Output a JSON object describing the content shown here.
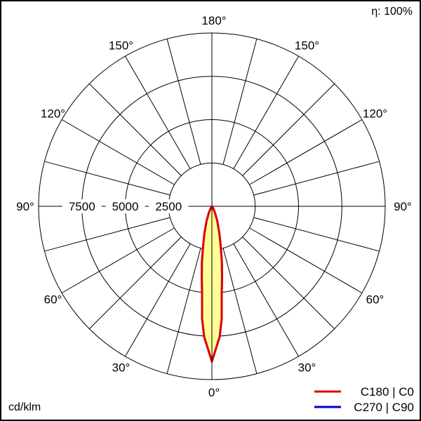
{
  "chart_data": {
    "type": "polar",
    "efficiency_label": "η: 100%",
    "unit_label": "cd/klm",
    "radial_ticks": [
      2500,
      5000,
      7500,
      10000
    ],
    "radial_tick_labels": [
      "2500",
      "5000",
      "7500"
    ],
    "rlim": [
      0,
      10000
    ],
    "angle_step_deg": 15,
    "angle_labels": [
      "0°",
      "30°",
      "60°",
      "90°",
      "120°",
      "150°",
      "180°"
    ],
    "grid": true,
    "legend_placement": "bottom-right",
    "series": [
      {
        "name": "C180 | C0",
        "color": "#e00000",
        "fill": "#ffff99",
        "gamma_deg": [
          0,
          3.4,
          5,
          6.5,
          8,
          10,
          12,
          15,
          20,
          25,
          30,
          40,
          90
        ],
        "intensity": [
          8950,
          7540,
          6500,
          5010,
          4200,
          3300,
          2500,
          1700,
          900,
          400,
          150,
          30,
          0
        ]
      },
      {
        "name": "C270 | C90",
        "color": "#0000cc",
        "gamma_deg": [
          0,
          3.4,
          5,
          6.5,
          8,
          10,
          12,
          15,
          20,
          25,
          30,
          40,
          90
        ],
        "intensity": [
          8950,
          7540,
          6500,
          5010,
          4200,
          3300,
          2500,
          1700,
          900,
          400,
          150,
          30,
          0
        ]
      }
    ]
  }
}
